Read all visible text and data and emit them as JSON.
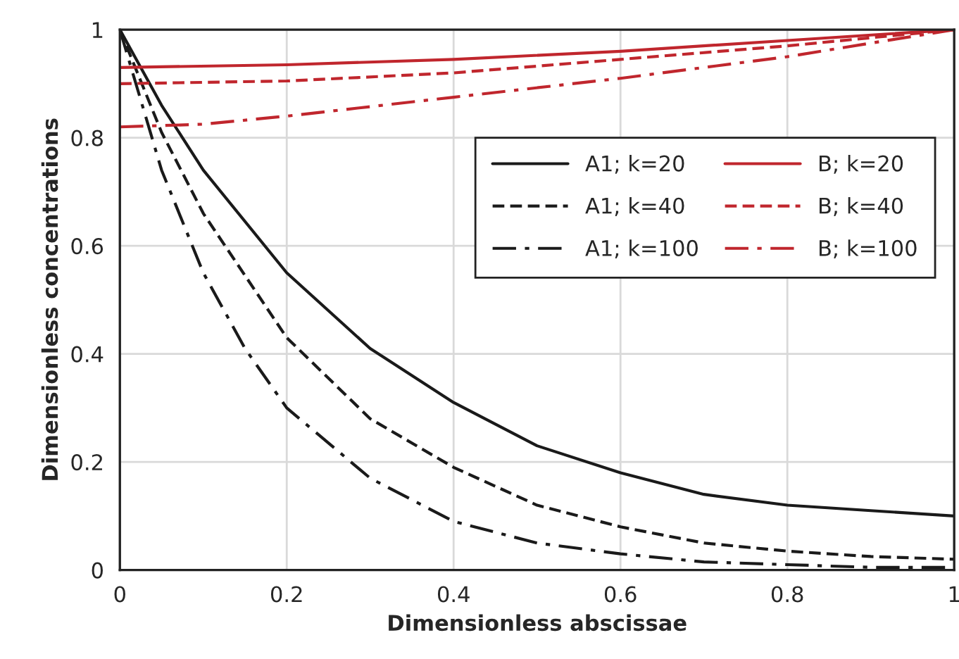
{
  "chart_data": {
    "type": "line",
    "xlabel": "Dimensionless abscissae",
    "ylabel": "Dimensionless concentrations",
    "xlim": [
      0,
      1
    ],
    "ylim": [
      0,
      1
    ],
    "xticks": [
      0,
      0.2,
      0.4,
      0.6,
      0.8,
      1
    ],
    "yticks": [
      0,
      0.2,
      0.4,
      0.6,
      0.8,
      1
    ],
    "grid": true,
    "legend": "top right",
    "marker": "none",
    "series": [
      {
        "name": "A1; k=20",
        "color": "#1a1a1a",
        "line_style": "solid",
        "x": [
          0,
          0.05,
          0.1,
          0.2,
          0.3,
          0.4,
          0.5,
          0.6,
          0.7,
          0.8,
          0.9,
          1
        ],
        "values": [
          1,
          0.86,
          0.74,
          0.55,
          0.41,
          0.31,
          0.23,
          0.18,
          0.14,
          0.12,
          0.11,
          0.1
        ]
      },
      {
        "name": "A1; k=40",
        "color": "#1a1a1a",
        "line_style": "dashed",
        "x": [
          0,
          0.05,
          0.1,
          0.2,
          0.3,
          0.4,
          0.5,
          0.6,
          0.7,
          0.8,
          0.9,
          1
        ],
        "values": [
          1,
          0.81,
          0.66,
          0.43,
          0.28,
          0.19,
          0.12,
          0.08,
          0.05,
          0.035,
          0.025,
          0.02
        ]
      },
      {
        "name": "A1; k=100",
        "color": "#1a1a1a",
        "line_style": "dashdot",
        "x": [
          0,
          0.05,
          0.1,
          0.15,
          0.2,
          0.3,
          0.4,
          0.5,
          0.6,
          0.7,
          0.8,
          0.9,
          1
        ],
        "values": [
          1,
          0.74,
          0.55,
          0.41,
          0.3,
          0.17,
          0.09,
          0.05,
          0.03,
          0.015,
          0.01,
          0.005,
          0.005
        ]
      },
      {
        "name": "B; k=20",
        "color": "#c0262d",
        "line_style": "solid",
        "x": [
          0,
          0.2,
          0.4,
          0.6,
          0.8,
          1
        ],
        "values": [
          0.93,
          0.935,
          0.945,
          0.96,
          0.98,
          1
        ]
      },
      {
        "name": "B; k=40",
        "color": "#c0262d",
        "line_style": "dashed",
        "x": [
          0,
          0.2,
          0.4,
          0.6,
          0.8,
          1
        ],
        "values": [
          0.9,
          0.905,
          0.92,
          0.945,
          0.97,
          1
        ]
      },
      {
        "name": "B; k=100",
        "color": "#c0262d",
        "line_style": "dashdot",
        "x": [
          0,
          0.1,
          0.2,
          0.4,
          0.6,
          0.8,
          0.9,
          1
        ],
        "values": [
          0.82,
          0.825,
          0.84,
          0.875,
          0.91,
          0.95,
          0.975,
          1
        ]
      }
    ]
  }
}
